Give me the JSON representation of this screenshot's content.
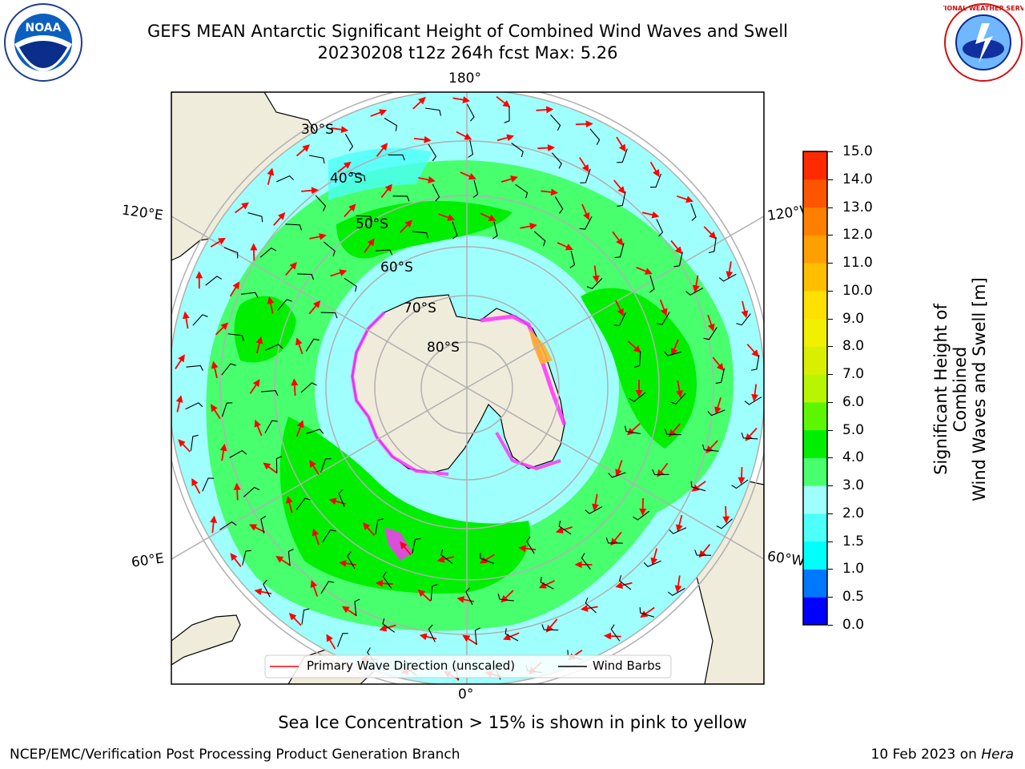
{
  "header": {
    "title_line1": "GEFS MEAN Antarctic Significant Height of Combined Wind Waves and Swell",
    "title_line2": "20230208 t12z 264h fcst   Max: 5.26"
  },
  "logos": {
    "noaa_text": "NOAA",
    "noaa_ring": "NATIONAL OCEANIC AND ATMOSPHERIC ADMINISTRATION · U.S. DEPARTMENT OF COMMERCE",
    "nws_ring": "NATIONAL WEATHER SERVICE"
  },
  "map": {
    "longitude_labels": {
      "top": "180°",
      "upper_left": "120°E",
      "upper_right": "120°W",
      "lower_left": "60°E",
      "lower_right": "60°W",
      "bottom": "0°"
    },
    "latitude_labels": [
      "30°S",
      "40°S",
      "50°S",
      "60°S",
      "70°S",
      "80°S"
    ],
    "legend": {
      "primary_wave": "Primary Wave Direction (unscaled)",
      "wind_barbs": "Wind Barbs"
    },
    "colors": {
      "land": "#efecdc",
      "antarctica": "#efecdc",
      "ocean_2_3m": "#9ffffd",
      "ocean_3_4m": "#48ff6e",
      "ocean_4_5m": "#00ef00",
      "ice": "#ff33ff",
      "arrow": "#ff0000",
      "barb": "#000000",
      "grid": "#b0b0b0"
    }
  },
  "colorbar": {
    "label_line1": "Significant Height of Combined",
    "label_line2": "Wind Waves and Swell [m]",
    "ticks": [
      "15.0",
      "14.0",
      "13.0",
      "12.0",
      "11.0",
      "10.0",
      "9.0",
      "8.0",
      "7.0",
      "6.0",
      "5.0",
      "4.0",
      "3.0",
      "2.0",
      "1.5",
      "1.0",
      "0.5",
      "0.0"
    ],
    "colors": [
      "#0000ff",
      "#0077ff",
      "#00ffff",
      "#4cfff8",
      "#9ffffd",
      "#48ff6e",
      "#00ef00",
      "#5cf700",
      "#b8f500",
      "#d8f000",
      "#f0f000",
      "#ffe000",
      "#ffbf00",
      "#ff9f00",
      "#ff7f00",
      "#ff5500",
      "#ff2a00",
      "#ff0000"
    ]
  },
  "caption": "Sea Ice Concentration > 15% is shown in pink to yellow",
  "footer": {
    "left": "NCEP/EMC/Verification Post Processing Product Generation Branch",
    "right_date": "10 Feb 2023 on ",
    "right_host": "Hera"
  }
}
